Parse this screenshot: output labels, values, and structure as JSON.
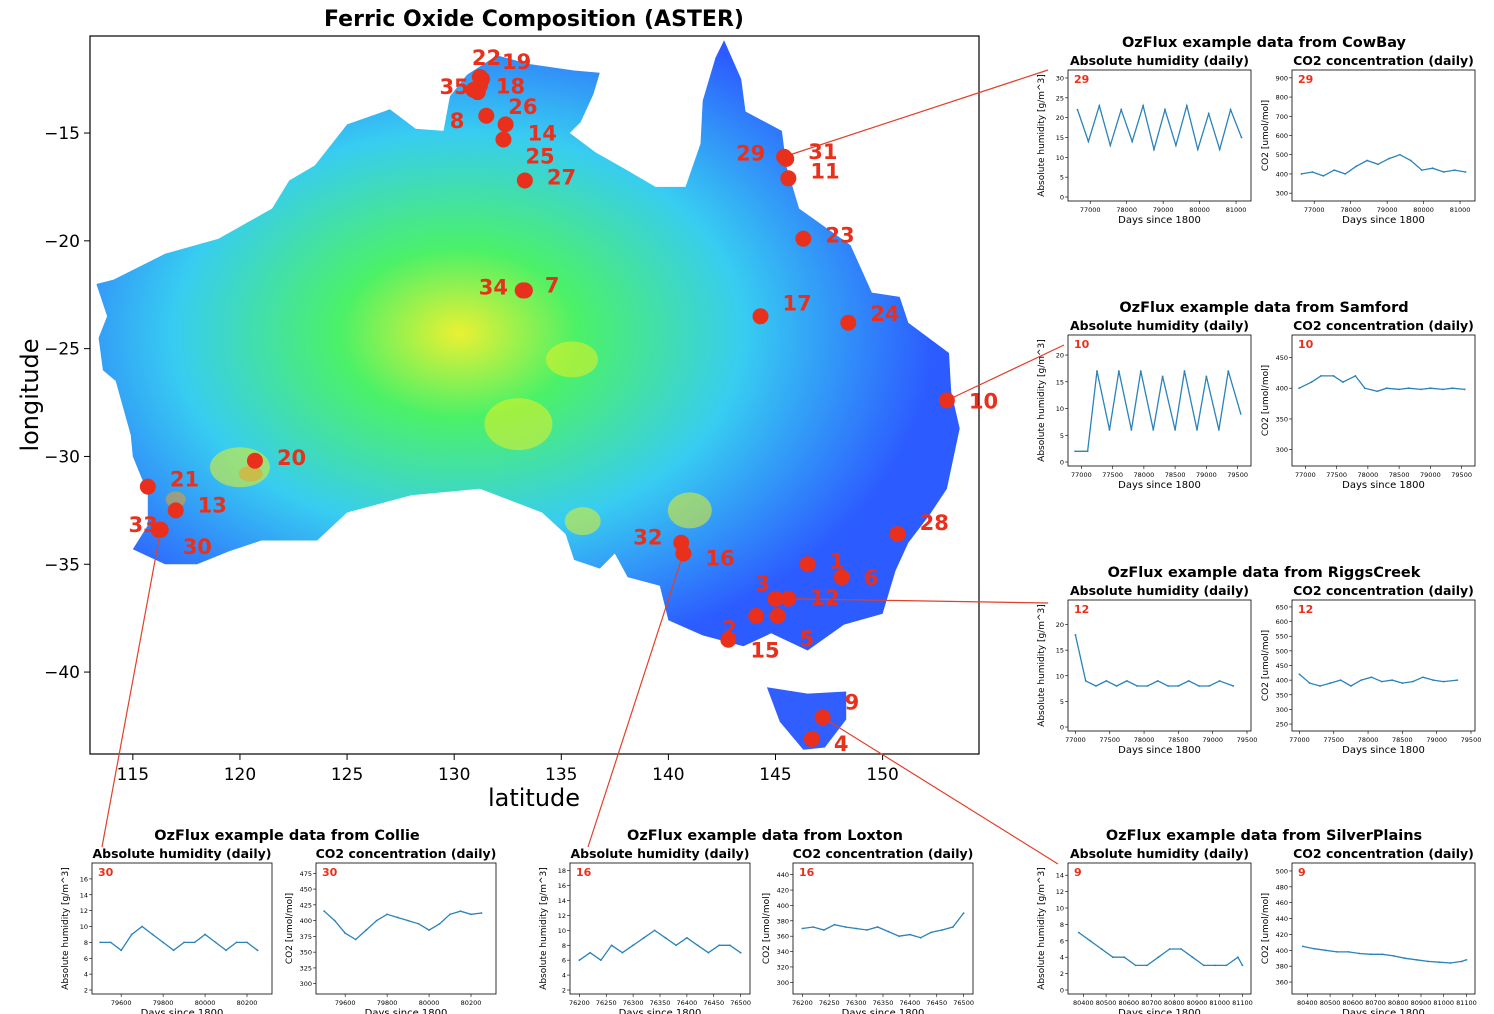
{
  "colors": {
    "site": "#e8301c",
    "series": "#2a83bb",
    "leader": "#e0402a",
    "map_blue": "#1a4dff",
    "map_cyan": "#26c8f0",
    "map_green": "#3cf05a",
    "map_yellow": "#e8f020",
    "map_orange": "#f0a020"
  },
  "chart_data": [
    {
      "type": "scatter",
      "title": "Ferric Oxide Composition (ASTER)",
      "xlabel": "latitude",
      "ylabel": "longitude",
      "xlim": [
        113,
        154.5
      ],
      "ylim": [
        -43.8,
        -10.5
      ],
      "xticks": [
        115,
        120,
        125,
        130,
        135,
        140,
        145,
        150
      ],
      "yticks": [
        -15,
        -20,
        -25,
        -30,
        -35,
        -40
      ],
      "sites": [
        {
          "id": "1",
          "x": 146.5,
          "y": -35.0
        },
        {
          "id": "2",
          "x": 144.1,
          "y": -37.4
        },
        {
          "id": "3",
          "x": 145.0,
          "y": -36.6
        },
        {
          "id": "4",
          "x": 146.7,
          "y": -43.1
        },
        {
          "id": "5",
          "x": 145.1,
          "y": -37.4
        },
        {
          "id": "6",
          "x": 148.1,
          "y": -35.6
        },
        {
          "id": "7",
          "x": 133.3,
          "y": -22.3
        },
        {
          "id": "8",
          "x": 131.1,
          "y": -13.1
        },
        {
          "id": "9",
          "x": 147.2,
          "y": -42.1
        },
        {
          "id": "10",
          "x": 153.0,
          "y": -27.4
        },
        {
          "id": "11",
          "x": 145.6,
          "y": -17.1
        },
        {
          "id": "12",
          "x": 145.6,
          "y": -36.6
        },
        {
          "id": "13",
          "x": 117.0,
          "y": -32.5
        },
        {
          "id": "14",
          "x": 132.4,
          "y": -14.6
        },
        {
          "id": "15",
          "x": 142.8,
          "y": -38.5
        },
        {
          "id": "16",
          "x": 140.7,
          "y": -34.5
        },
        {
          "id": "17",
          "x": 144.3,
          "y": -23.5
        },
        {
          "id": "18",
          "x": 131.2,
          "y": -12.8
        },
        {
          "id": "19",
          "x": 131.3,
          "y": -12.5
        },
        {
          "id": "20",
          "x": 120.7,
          "y": -30.2
        },
        {
          "id": "21",
          "x": 115.7,
          "y": -31.4
        },
        {
          "id": "22",
          "x": 131.2,
          "y": -12.4
        },
        {
          "id": "23",
          "x": 146.3,
          "y": -19.9
        },
        {
          "id": "24",
          "x": 148.4,
          "y": -23.8
        },
        {
          "id": "25",
          "x": 132.3,
          "y": -15.3
        },
        {
          "id": "26",
          "x": 131.5,
          "y": -14.2
        },
        {
          "id": "27",
          "x": 133.3,
          "y": -17.2
        },
        {
          "id": "28",
          "x": 150.7,
          "y": -33.6
        },
        {
          "id": "29",
          "x": 145.4,
          "y": -16.1
        },
        {
          "id": "30",
          "x": 116.3,
          "y": -33.4
        },
        {
          "id": "31",
          "x": 145.5,
          "y": -16.2
        },
        {
          "id": "32",
          "x": 140.6,
          "y": -34.0
        },
        {
          "id": "33",
          "x": 116.2,
          "y": -33.4
        },
        {
          "id": "34",
          "x": 133.2,
          "y": -22.3
        },
        {
          "id": "35",
          "x": 130.9,
          "y": -13.0
        }
      ]
    },
    {
      "type": "line",
      "group": "CowBay",
      "id": "29",
      "title": "Absolute humidity (daily)",
      "xlabel": "Days since 1800",
      "ylabel": "Absolute humidity [g/m^3]",
      "xticks": [
        77000,
        78000,
        79000,
        80000,
        81000
      ],
      "yticks": [
        0,
        5,
        10,
        15,
        20,
        25,
        30
      ],
      "xlim": [
        76500,
        81300
      ],
      "ylim": [
        0,
        31
      ],
      "x": [
        76650,
        76950,
        77250,
        77550,
        77850,
        78150,
        78450,
        78750,
        79050,
        79350,
        79650,
        79950,
        80250,
        80550,
        80850,
        81150
      ],
      "y": [
        22,
        14,
        23,
        13,
        22,
        14,
        23,
        12,
        22,
        13,
        23,
        12,
        21,
        12,
        22,
        15
      ]
    },
    {
      "type": "line",
      "group": "CowBay",
      "id": "29",
      "title": "CO2 concentration (daily)",
      "xlabel": "Days since 1800",
      "ylabel": "CO2 [umol/mol]",
      "xticks": [
        77000,
        78000,
        79000,
        80000,
        81000
      ],
      "yticks": [
        300,
        400,
        500,
        600,
        700,
        800,
        900
      ],
      "xlim": [
        76500,
        81300
      ],
      "ylim": [
        280,
        920
      ],
      "x": [
        76650,
        76950,
        77250,
        77550,
        77850,
        78150,
        78450,
        78750,
        79050,
        79350,
        79650,
        79950,
        80250,
        80550,
        80850,
        81150
      ],
      "y": [
        400,
        410,
        390,
        420,
        400,
        440,
        470,
        450,
        480,
        500,
        470,
        420,
        430,
        410,
        420,
        410
      ]
    },
    {
      "type": "line",
      "group": "Samford",
      "id": "10",
      "title": "Absolute humidity (daily)",
      "xlabel": "Days since 1800",
      "ylabel": "Absolute humidity [g/m^3]",
      "xticks": [
        77000,
        77500,
        78000,
        78500,
        79000,
        79500
      ],
      "yticks": [
        0,
        5,
        10,
        15,
        20
      ],
      "xlim": [
        76850,
        79650
      ],
      "ylim": [
        0,
        23
      ],
      "x": [
        76900,
        77100,
        77250,
        77450,
        77600,
        77800,
        77950,
        78150,
        78300,
        78500,
        78650,
        78850,
        79000,
        79200,
        79350,
        79550
      ],
      "y": [
        2,
        2,
        17,
        6,
        17,
        6,
        17,
        6,
        16,
        6,
        17,
        6,
        16,
        6,
        17,
        9
      ]
    },
    {
      "type": "line",
      "group": "Samford",
      "id": "10",
      "title": "CO2 concentration (daily)",
      "xlabel": "Days since 1800",
      "ylabel": "CO2 [umol/mol]",
      "xticks": [
        77000,
        77500,
        78000,
        78500,
        79000,
        79500
      ],
      "yticks": [
        300,
        350,
        400,
        450
      ],
      "xlim": [
        76850,
        79650
      ],
      "ylim": [
        280,
        480
      ],
      "x": [
        76900,
        77100,
        77250,
        77450,
        77600,
        77800,
        77950,
        78150,
        78300,
        78500,
        78650,
        78850,
        79000,
        79200,
        79350,
        79550
      ],
      "y": [
        400,
        410,
        420,
        420,
        410,
        420,
        400,
        395,
        400,
        398,
        400,
        398,
        400,
        398,
        400,
        398
      ]
    },
    {
      "type": "line",
      "group": "RiggsCreek",
      "id": "12",
      "title": "Absolute humidity (daily)",
      "xlabel": "Days since 1800",
      "ylabel": "Absolute humidity [g/m^3]",
      "xticks": [
        77000,
        77500,
        78000,
        78500,
        79000,
        79500
      ],
      "yticks": [
        0,
        5,
        10,
        15,
        20
      ],
      "xlim": [
        76950,
        79500
      ],
      "ylim": [
        0,
        24
      ],
      "x": [
        77000,
        77150,
        77300,
        77450,
        77600,
        77750,
        77900,
        78050,
        78200,
        78350,
        78500,
        78650,
        78800,
        78950,
        79100,
        79300
      ],
      "y": [
        18,
        9,
        8,
        9,
        8,
        9,
        8,
        8,
        9,
        8,
        8,
        9,
        8,
        8,
        9,
        8
      ]
    },
    {
      "type": "line",
      "group": "RiggsCreek",
      "id": "12",
      "title": "CO2 concentration (daily)",
      "xlabel": "Days since 1800",
      "ylabel": "CO2 [umol/mol]",
      "xticks": [
        77000,
        77500,
        78000,
        78500,
        79000,
        79500
      ],
      "yticks": [
        250,
        300,
        350,
        400,
        450,
        500,
        550,
        600,
        650
      ],
      "xlim": [
        76950,
        79500
      ],
      "ylim": [
        240,
        660
      ],
      "x": [
        77000,
        77150,
        77300,
        77450,
        77600,
        77750,
        77900,
        78050,
        78200,
        78350,
        78500,
        78650,
        78800,
        78950,
        79100,
        79300
      ],
      "y": [
        420,
        390,
        380,
        390,
        400,
        380,
        400,
        410,
        395,
        400,
        390,
        395,
        410,
        400,
        395,
        400
      ]
    },
    {
      "type": "line",
      "group": "Collie",
      "id": "30",
      "title": "Absolute humidity (daily)",
      "xlabel": "Days since 1800",
      "ylabel": "Absolute humidity [g/m^3]",
      "xticks": [
        79600,
        79800,
        80000,
        80200
      ],
      "yticks": [
        2,
        4,
        6,
        8,
        10,
        12,
        14,
        16
      ],
      "xlim": [
        79480,
        80300
      ],
      "ylim": [
        2,
        17.5
      ],
      "x": [
        79500,
        79550,
        79600,
        79650,
        79700,
        79750,
        79800,
        79850,
        79900,
        79950,
        80000,
        80050,
        80100,
        80150,
        80200,
        80250
      ],
      "y": [
        8,
        8,
        7,
        9,
        10,
        9,
        8,
        7,
        8,
        8,
        9,
        8,
        7,
        8,
        8,
        7
      ]
    },
    {
      "type": "line",
      "group": "Collie",
      "id": "30",
      "title": "CO2 concentration (daily)",
      "xlabel": "Days since 1800",
      "ylabel": "CO2 [umol/mol]",
      "xticks": [
        79600,
        79800,
        80000,
        80200
      ],
      "yticks": [
        300,
        325,
        350,
        375,
        400,
        425,
        450,
        475
      ],
      "xlim": [
        79480,
        80300
      ],
      "ylim": [
        290,
        485
      ],
      "x": [
        79500,
        79550,
        79600,
        79650,
        79700,
        79750,
        79800,
        79850,
        79900,
        79950,
        80000,
        80050,
        80100,
        80150,
        80200,
        80250
      ],
      "y": [
        415,
        400,
        380,
        370,
        385,
        400,
        410,
        405,
        400,
        395,
        385,
        395,
        410,
        415,
        410,
        412
      ]
    },
    {
      "type": "line",
      "group": "Loxton",
      "id": "16",
      "title": "Absolute humidity (daily)",
      "xlabel": "Days since 1800",
      "ylabel": "Absolute humidity [g/m^3]",
      "xticks": [
        76200,
        76250,
        76300,
        76350,
        76400,
        76450,
        76500
      ],
      "yticks": [
        2,
        4,
        6,
        8,
        10,
        12,
        14,
        16,
        18
      ],
      "xlim": [
        76190,
        76510
      ],
      "ylim": [
        2,
        18.5
      ],
      "x": [
        76200,
        76220,
        76240,
        76260,
        76280,
        76300,
        76320,
        76340,
        76360,
        76380,
        76400,
        76420,
        76440,
        76460,
        76480,
        76500
      ],
      "y": [
        6,
        7,
        6,
        8,
        7,
        8,
        9,
        10,
        9,
        8,
        9,
        8,
        7,
        8,
        8,
        7
      ]
    },
    {
      "type": "line",
      "group": "Loxton",
      "id": "16",
      "title": "CO2 concentration (daily)",
      "xlabel": "Days since 1800",
      "ylabel": "CO2 [umol/mol]",
      "xticks": [
        76200,
        76250,
        76300,
        76350,
        76400,
        76450,
        76500
      ],
      "yticks": [
        300,
        320,
        340,
        360,
        380,
        400,
        420,
        440
      ],
      "xlim": [
        76190,
        76510
      ],
      "ylim": [
        290,
        450
      ],
      "x": [
        76200,
        76220,
        76240,
        76260,
        76280,
        76300,
        76320,
        76340,
        76360,
        76380,
        76400,
        76420,
        76440,
        76460,
        76480,
        76500
      ],
      "y": [
        370,
        372,
        368,
        375,
        372,
        370,
        368,
        372,
        366,
        360,
        362,
        358,
        365,
        368,
        372,
        390
      ]
    },
    {
      "type": "line",
      "group": "SilverPlains",
      "id": "9",
      "title": "Absolute humidity (daily)",
      "xlabel": "Days since 1800",
      "ylabel": "Absolute humidity [g/m^3]",
      "xticks": [
        80400,
        80500,
        80600,
        80700,
        80800,
        80900,
        81000,
        81100
      ],
      "yticks": [
        0,
        2,
        4,
        6,
        8,
        10,
        12,
        14
      ],
      "xlim": [
        80350,
        81120
      ],
      "ylim": [
        0,
        15
      ],
      "x": [
        80380,
        80430,
        80480,
        80530,
        80580,
        80630,
        80680,
        80730,
        80780,
        80830,
        80880,
        80930,
        80980,
        81030,
        81080,
        81100
      ],
      "y": [
        7,
        6,
        5,
        4,
        4,
        3,
        3,
        4,
        5,
        5,
        4,
        3,
        3,
        3,
        4,
        3
      ]
    },
    {
      "type": "line",
      "group": "SilverPlains",
      "id": "9",
      "title": "CO2 concentration (daily)",
      "xlabel": "Days since 1800",
      "ylabel": "CO2 [umol/mol]",
      "xticks": [
        80400,
        80500,
        80600,
        80700,
        80800,
        80900,
        81000,
        81100
      ],
      "yticks": [
        360,
        380,
        400,
        420,
        440,
        460,
        480,
        500
      ],
      "xlim": [
        80350,
        81120
      ],
      "ylim": [
        350,
        505
      ],
      "x": [
        80380,
        80430,
        80480,
        80530,
        80580,
        80630,
        80680,
        80730,
        80780,
        80830,
        80880,
        80930,
        80980,
        81030,
        81080,
        81100
      ],
      "y": [
        405,
        402,
        400,
        398,
        398,
        396,
        395,
        395,
        393,
        390,
        388,
        386,
        385,
        384,
        386,
        388
      ]
    }
  ],
  "insets": {
    "CowBay": {
      "title": "OzFlux example data from CowBay"
    },
    "Samford": {
      "title": "OzFlux example data from Samford"
    },
    "RiggsCreek": {
      "title": "OzFlux example data from RiggsCreek"
    },
    "Collie": {
      "title": "OzFlux example data from Collie"
    },
    "Loxton": {
      "title": "OzFlux example data from Loxton"
    },
    "SilverPlains": {
      "title": "OzFlux example data from SilverPlains"
    }
  }
}
